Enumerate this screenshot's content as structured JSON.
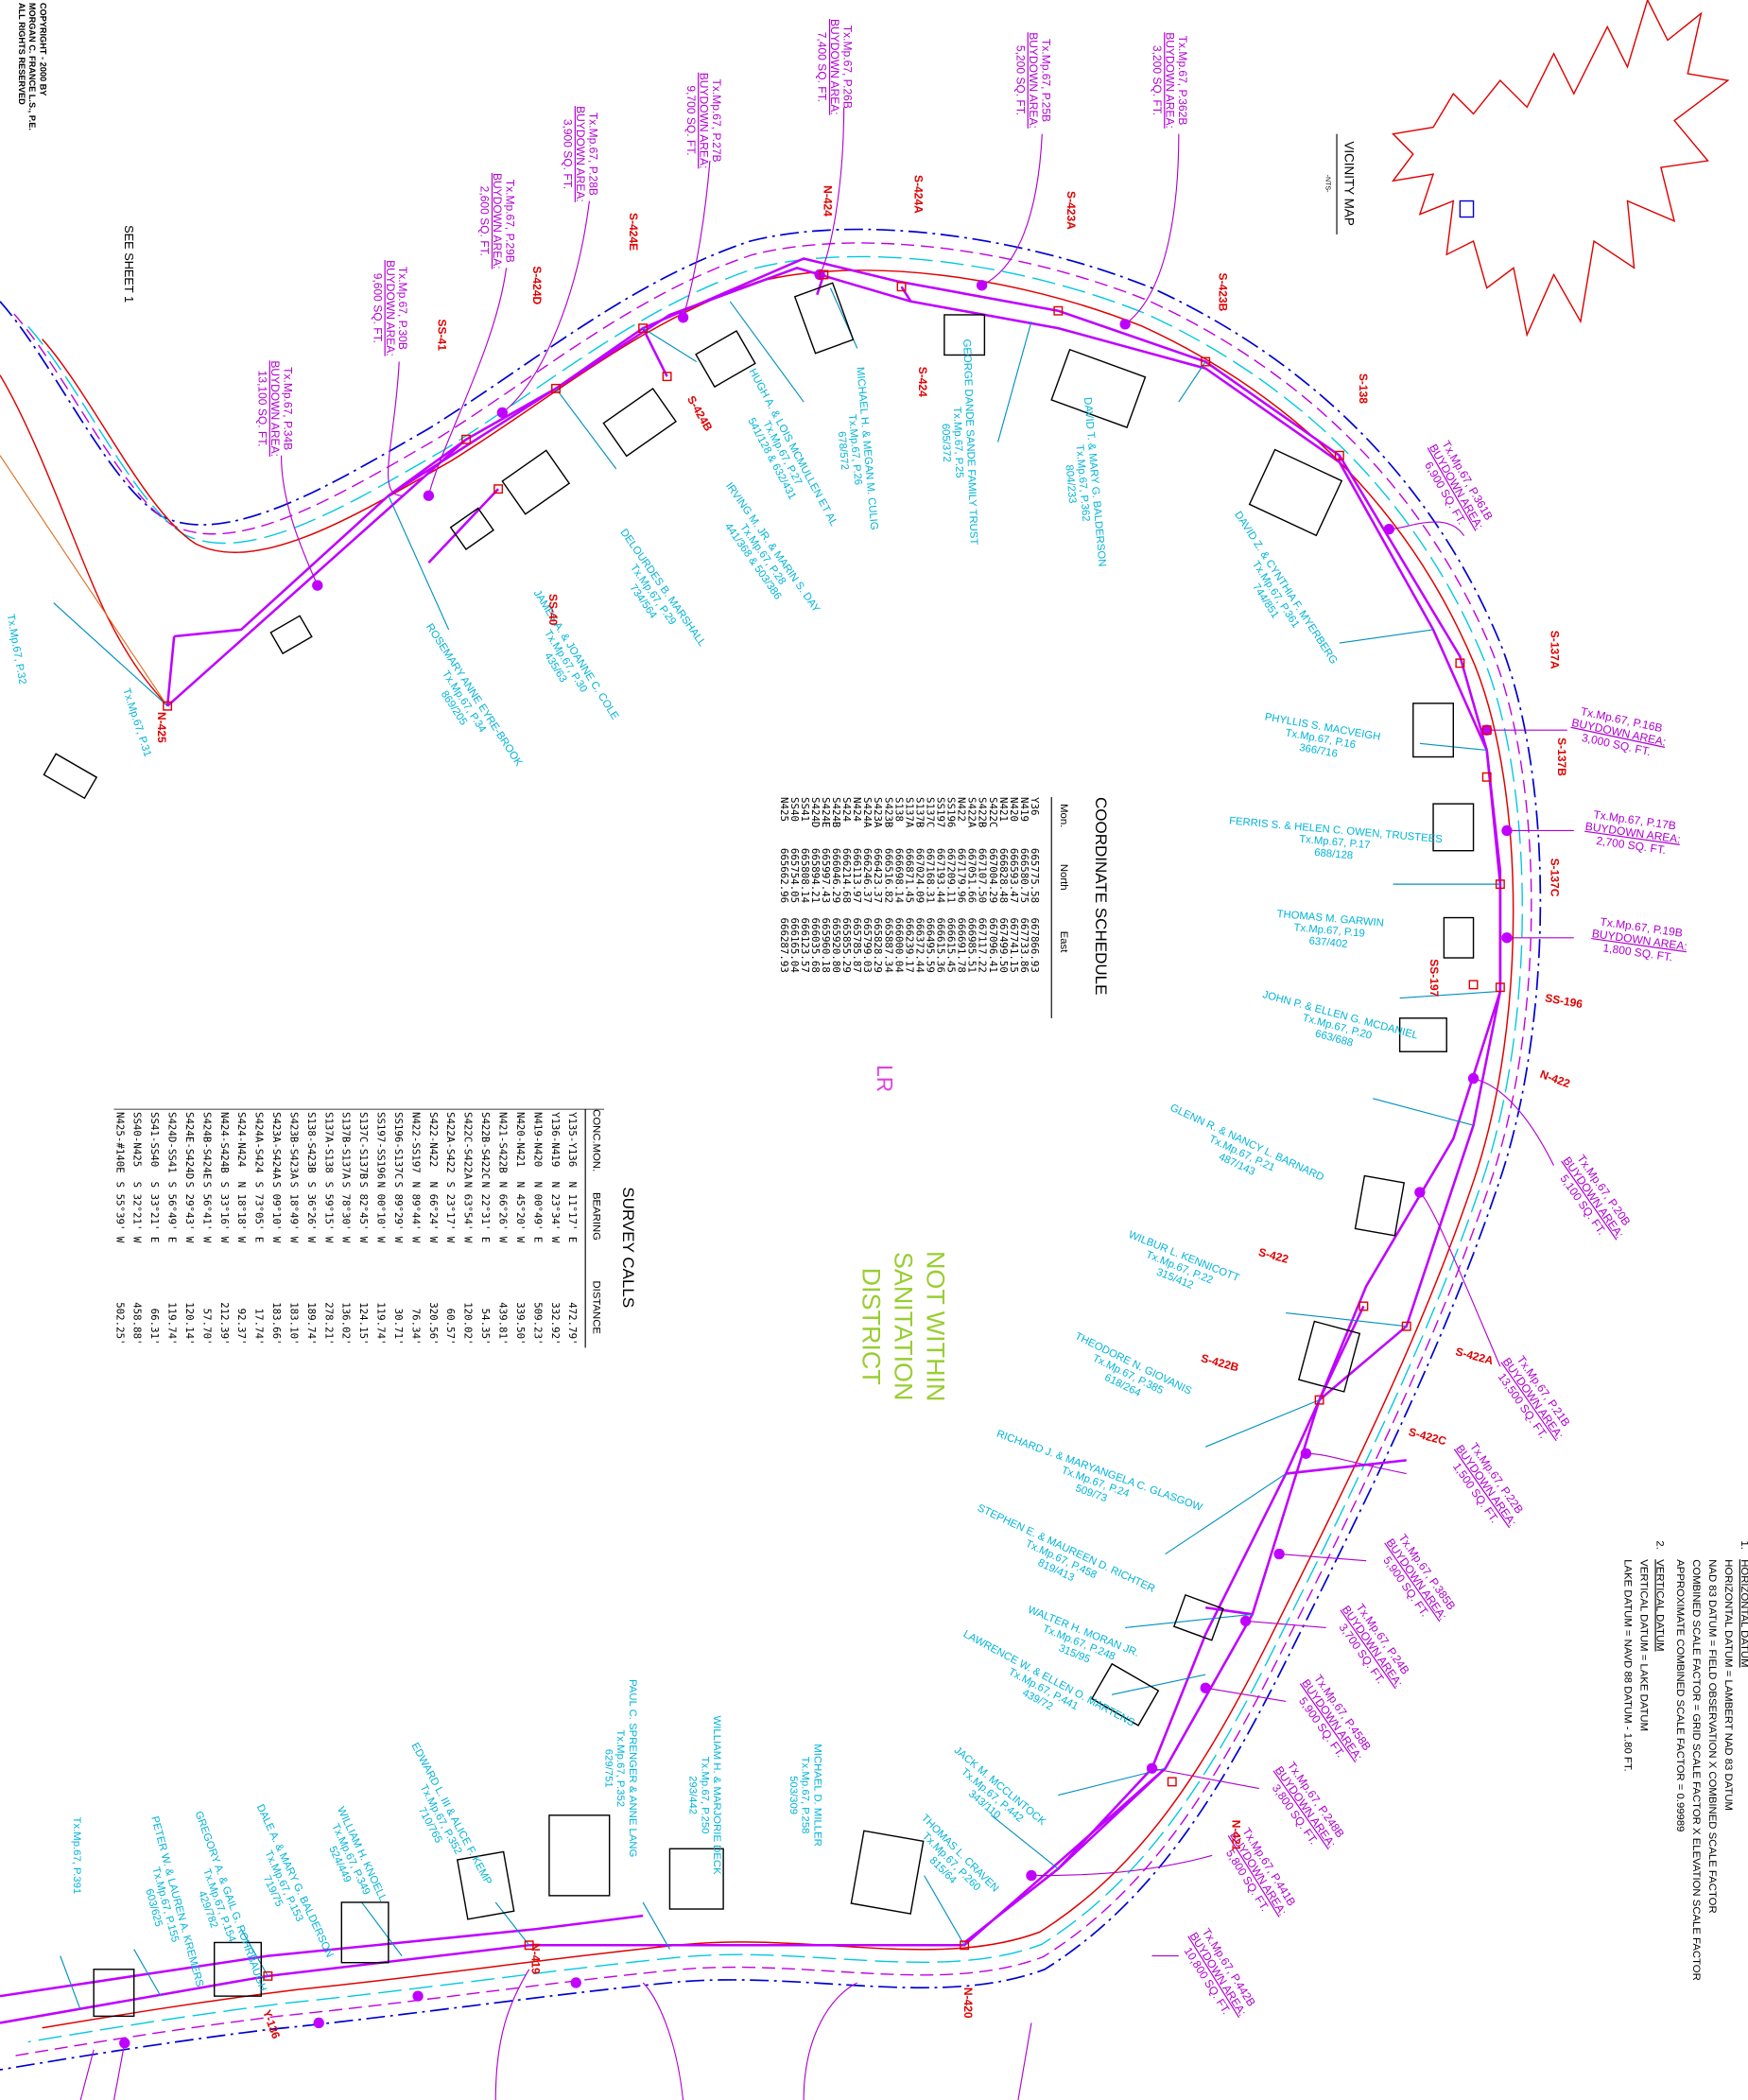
{
  "copyright": [
    "COPYRIGHT - 2000 BY",
    "MORGAN C. FRANCE L.S., P.E.",
    "ALL RIGHTS RESERVED"
  ],
  "see_sheet": "SEE SHEET 1",
  "vicinity_map": {
    "title": "VICINITY MAP",
    "scale": "-NTS-"
  },
  "notes": [
    {
      "number": "1.",
      "title": "HORIZONTAL DATUM",
      "lines": [
        "HORIZONTAL DATUM = LAMBERT NAD 83 DATUM",
        "NAD 83 DATUM = FIELD OBSERVATION X COMBINED SCALE FACTOR",
        "COMBINED SCALE FACTOR = GRID SCALE FACTOR X ELEVATION SCALE FACTOR",
        "APPROXIMATE COMBINED SCALE FACTOR = 0.99989"
      ]
    },
    {
      "number": "2.",
      "title": "VERTICAL DATUM",
      "lines": [
        "VERTICAL DATUM = LAKE DATUM",
        "LAKE DATUM = NAVD 88 DATUM - 1.80 FT."
      ]
    }
  ],
  "coordinate_schedule": {
    "title": "COORDINATE SCHEDULE",
    "columns": [
      "Mon.",
      "North",
      "East"
    ],
    "rows": [
      [
        "Y36",
        "665775.58",
        "667866.93"
      ],
      [
        "N419",
        "666580.75",
        "667733.86"
      ],
      [
        "N420",
        "666593.47",
        "667741.15"
      ],
      [
        "N421",
        "666828.48",
        "667499.50"
      ],
      [
        "S422C",
        "667004.29",
        "667096.41"
      ],
      [
        "S422B",
        "667107.50",
        "667117.22"
      ],
      [
        "S422A",
        "667051.66",
        "666985.51"
      ],
      [
        "N422",
        "667179.96",
        "666691.78"
      ],
      [
        "SS196",
        "667209.11",
        "666615.45"
      ],
      [
        "SS197",
        "667193.44",
        "666615.36"
      ],
      [
        "S137C",
        "667168.31",
        "666495.59"
      ],
      [
        "S137B",
        "667024.09",
        "666372.44"
      ],
      [
        "S137A",
        "666871.45",
        "666239.17"
      ],
      [
        "S138",
        "666698.14",
        "666000.04"
      ],
      [
        "S423B",
        "666516.82",
        "665887.34"
      ],
      [
        "S423A",
        "666423.37",
        "665828.29"
      ],
      [
        "S424A",
        "666246.37",
        "665799.03"
      ],
      [
        "N424",
        "666113.97",
        "665785.87"
      ],
      [
        "S424",
        "666214.68",
        "665855.29"
      ],
      [
        "S424B",
        "666046.29",
        "665920.80"
      ],
      [
        "S424E",
        "665997.43",
        "665960.18"
      ],
      [
        "S424D",
        "665894.21",
        "666035.68"
      ],
      [
        "SS41",
        "665808.14",
        "666123.57"
      ],
      [
        "SS40",
        "665754.05",
        "666165.04"
      ],
      [
        "N425",
        "665662.96",
        "666287.93"
      ]
    ]
  },
  "survey_calls": {
    "title": "SURVEY CALLS",
    "columns": [
      "CONC.MON.",
      "BEARING",
      "DISTANCE"
    ],
    "rows": [
      [
        "Y135-Y136",
        "N 11°17' E",
        "472.79'"
      ],
      [
        "Y136-N419",
        "N 23°34' W",
        "332.92'"
      ],
      [
        "N419-N420",
        "N 00°49' E",
        "509.23'"
      ],
      [
        "N420-N421",
        "N 45°20' W",
        "339.50'"
      ],
      [
        "N421-S422B",
        "N 66°26' W",
        "439.81'"
      ],
      [
        "S422B-S422C",
        "N 22°31' E",
        "54.35'"
      ],
      [
        "S422C-S422A",
        "N 63°54' W",
        "120.02'"
      ],
      [
        "S422A-S422",
        "S 23°17' W",
        "60.57'"
      ],
      [
        "S422-N422",
        "N 66°24' W",
        "320.56'"
      ],
      [
        "N422-SS197",
        "N 89°44' W",
        "76.34'"
      ],
      [
        "SS196-S137C",
        "S 89°29' W",
        "30.71'"
      ],
      [
        "SS197-SS196",
        "N 00°10' W",
        "119.74'"
      ],
      [
        "S137C-S137B",
        "S 82°45' W",
        "124.15'"
      ],
      [
        "S137B-S137A",
        "S 78°30' W",
        "136.02'"
      ],
      [
        "S137A-S138",
        "S 59°15' W",
        "278.21'"
      ],
      [
        "S138-S423B",
        "S 36°26' W",
        "189.74'"
      ],
      [
        "S423B-S423A",
        "S 18°49' W",
        "183.10'"
      ],
      [
        "S423A-S424A",
        "S 09°10' W",
        "183.66'"
      ],
      [
        "S424A-S424",
        "S 73°05' E",
        "17.74'"
      ],
      [
        "S424-N424",
        "N 18°18' W",
        "92.37'"
      ],
      [
        "N424-S424B",
        "S 33°16' W",
        "212.39'"
      ],
      [
        "S424B-S424E",
        "S 56°41' W",
        "57.70'"
      ],
      [
        "S424E-S424D",
        "S 29°43' W",
        "120.14'"
      ],
      [
        "S424D-SS41",
        "S 56°49' E",
        "119.74'"
      ],
      [
        "SS41-SS40",
        "S 33°21' E",
        "66.31'"
      ],
      [
        "SS40-N425",
        "S 32°21' W",
        "458.88'"
      ],
      [
        "N425-#140E",
        "S 55°39' W",
        "502.25'"
      ]
    ]
  },
  "district": {
    "code": "LR",
    "lines": [
      "NOT WITHIN",
      "SANITATION",
      "DISTRICT"
    ]
  },
  "monuments": [
    "N-425",
    "SS-41",
    "S-424D",
    "S-424E",
    "N-424",
    "S-424A",
    "S-423A",
    "S-423B",
    "S-138",
    "S-137A",
    "S-137B",
    "S-137C",
    "SS-196",
    "N-422",
    "S-422A",
    "S-422C",
    "S-422",
    "S-422B",
    "SS-197",
    "S-424",
    "S-424B",
    "SS-40",
    "N-421",
    "N-420",
    "N-419",
    "Y-136"
  ],
  "owners": [
    [
      "MICHAEL H. & MEGAN M. CULIG",
      "Tx.Mp.67, P.26",
      "678/572"
    ],
    [
      "HUGH A. & LOIS MCMULLEN ET AL",
      "Tx.Mp.67, P.27",
      "541/128 & 632/431"
    ],
    [
      "GEORGE DANDE SANDE FAMILY TRUST",
      "Tx.Mp.67, P.25",
      "605/372"
    ],
    [
      "DAVID T. & MARY G. BALDERSON",
      "Tx.Mp.67, P.362",
      "804/233"
    ],
    [
      "DAVID Z. & CYNTHIA F. MYERBERG",
      "Tx.Mp.67, P.361",
      "744/851"
    ],
    [
      "IRVING M. JR. & MARIN S. DAY",
      "Tx.Mp.67, P.28",
      "441/368 & 503/386"
    ],
    [
      "DELOURDES B. MARSHALL",
      "Tx.Mp.67, P.29",
      "734/564"
    ],
    [
      "JAMES A. & JOANNE C. COLE",
      "Tx.Mp.67, P.30",
      "435/63"
    ],
    [
      "ROSEMARY ANNE EYRE-BROOK",
      "Tx.Mp.67, P.34",
      "869/205"
    ],
    [
      "PHYLLIS S. MACVEIGH",
      "Tx.Mp.67, P.16",
      "366/716"
    ],
    [
      "FERRIS S. & HELEN C. OWEN, TRUSTEES",
      "Tx.Mp.67, P.17",
      "688/128"
    ],
    [
      "THOMAS M. GARWIN",
      "Tx.Mp.67, P.19",
      "637/402"
    ],
    [
      "JOHN P. & ELLEN G. MCDANIEL",
      "Tx.Mp.67, P.20",
      "663/688"
    ],
    [
      "GLENN R. & NANCY L. BARNARD",
      "Tx.Mp.67, P.21",
      "487/143"
    ],
    [
      "WILBUR L. KENNICOTT",
      "Tx.Mp.67, P.22",
      "315/412"
    ],
    [
      "THEODORE N. GIOVANIS",
      "Tx.Mp.67, P.385",
      "618/264"
    ],
    [
      "RICHARD J. & MARYANGELA C. GLASGOW",
      "Tx.Mp.67, P.24",
      "509/73"
    ],
    [
      "STEPHEN E. & MAUREEN D. RICHTER",
      "Tx.Mp.67, P.458",
      "819/413"
    ],
    [
      "WALTER H. MORAN JR.",
      "Tx.Mp.67, P.248",
      "315/95"
    ],
    [
      "LAWRENCE W. & ELLEN O. MARTENS",
      "Tx.Mp.67, P.441",
      "439/72"
    ],
    [
      "JACK M. MCCLINTOCK",
      "Tx.Mp.67, P.442",
      "343/110"
    ],
    [
      "THOMAS L. CRAVEN",
      "Tx.Mp.67, P.260",
      "815/64"
    ],
    [
      "MICHAEL D. MILLER",
      "Tx.Mp.67, P.258",
      "503/309"
    ],
    [
      "WILLIAM H. & MARJORIE DECK",
      "Tx.Mp.67, P.250",
      "293/442"
    ],
    [
      "PAUL C. SPRENGER & ANNE LANG",
      "Tx.Mp.67, P.352",
      "629/751"
    ],
    [
      "EDWARD L. III & ALICE F. KEMP",
      "Tx.Mp.67, P.352",
      "710/765"
    ],
    [
      "WILLIAM H. KNOELL",
      "Tx.Mp.67, P.349",
      "524/449"
    ],
    [
      "DALE A. & MARY G. BALDERSON",
      "Tx.Mp.67, P.153",
      "719/75"
    ],
    [
      "GREGORY A. & GAIL G. ROHRBAUGH",
      "Tx.Mp.67, P.154",
      "429/782"
    ],
    [
      "PETER W. & LAUREN A. KREMERS",
      "Tx.Mp.67, P.155",
      "603/625"
    ]
  ],
  "parcels": [
    "Tx.Mp.67, P.32",
    "Tx.Mp.67, P.31",
    "Tx.Mp.67, P.391"
  ],
  "buydowns": [
    [
      "Tx.Mp.67, P.362B",
      "BUYDOWN AREA:",
      "3,200 SQ. FT."
    ],
    [
      "Tx.Mp.67, P.25B",
      "BUYDOWN AREA:",
      "5,200 SQ. FT."
    ],
    [
      "Tx.Mp.67, P.26B",
      "BUYDOWN AREA:",
      "7,400 SQ. FT."
    ],
    [
      "Tx.Mp.67, P.27B",
      "BUYDOWN AREA:",
      "9,700 SQ. FT."
    ],
    [
      "Tx.Mp.67, P.28B",
      "BUYDOWN AREA:",
      "3,900 SQ. FT."
    ],
    [
      "Tx.Mp.67, P.29B",
      "BUYDOWN AREA:",
      "2,600 SQ. FT."
    ],
    [
      "Tx.Mp.67, P.30B",
      "BUYDOWN AREA:",
      "9,600 SQ. FT."
    ],
    [
      "Tx.Mp.67, P.34B",
      "BUYDOWN AREA:",
      "13,100 SQ. FT."
    ],
    [
      "Tx.Mp.67, P.361B",
      "BUYDOWN AREA:",
      "6,900 SQ. FT."
    ],
    [
      "Tx.Mp.67, P.16B",
      "BUYDOWN AREA:",
      "3,000 SQ. FT."
    ],
    [
      "Tx.Mp.67, P.17B",
      "BUYDOWN AREA:",
      "2,700 SQ. FT."
    ],
    [
      "Tx.Mp.67, P.19B",
      "BUYDOWN AREA:",
      "1,800 SQ. FT."
    ],
    [
      "Tx.Mp.67, P.20B",
      "BUYDOWN AREA:",
      "5,100 SQ. FT."
    ],
    [
      "Tx.Mp.67, P.21B",
      "BUYDOWN AREA:",
      "13,500 SQ. FT."
    ],
    [
      "Tx.Mp.67, P.22B",
      "BUYDOWN AREA:",
      "1,500 SQ. FT."
    ],
    [
      "Tx.Mp.67, P.385B",
      "BUYDOWN AREA:",
      "5,900 SQ. FT."
    ],
    [
      "Tx.Mp.67, P.24B",
      "BUYDOWN AREA:",
      "3,700 SQ. FT."
    ],
    [
      "Tx.Mp.67, P.458B",
      "BUYDOWN AREA:",
      "5,900 SQ. FT."
    ],
    [
      "Tx.Mp.67, P.248B",
      "BUYDOWN AREA:",
      "3,800 SQ. FT."
    ],
    [
      "Tx.Mp.67, P.441B",
      "BUYDOWN AREA:",
      "5,800 SQ. FT."
    ],
    [
      "Tx.Mp.67, P.442B",
      "BUYDOWN AREA:",
      "10,800 SQ. FT."
    ]
  ]
}
